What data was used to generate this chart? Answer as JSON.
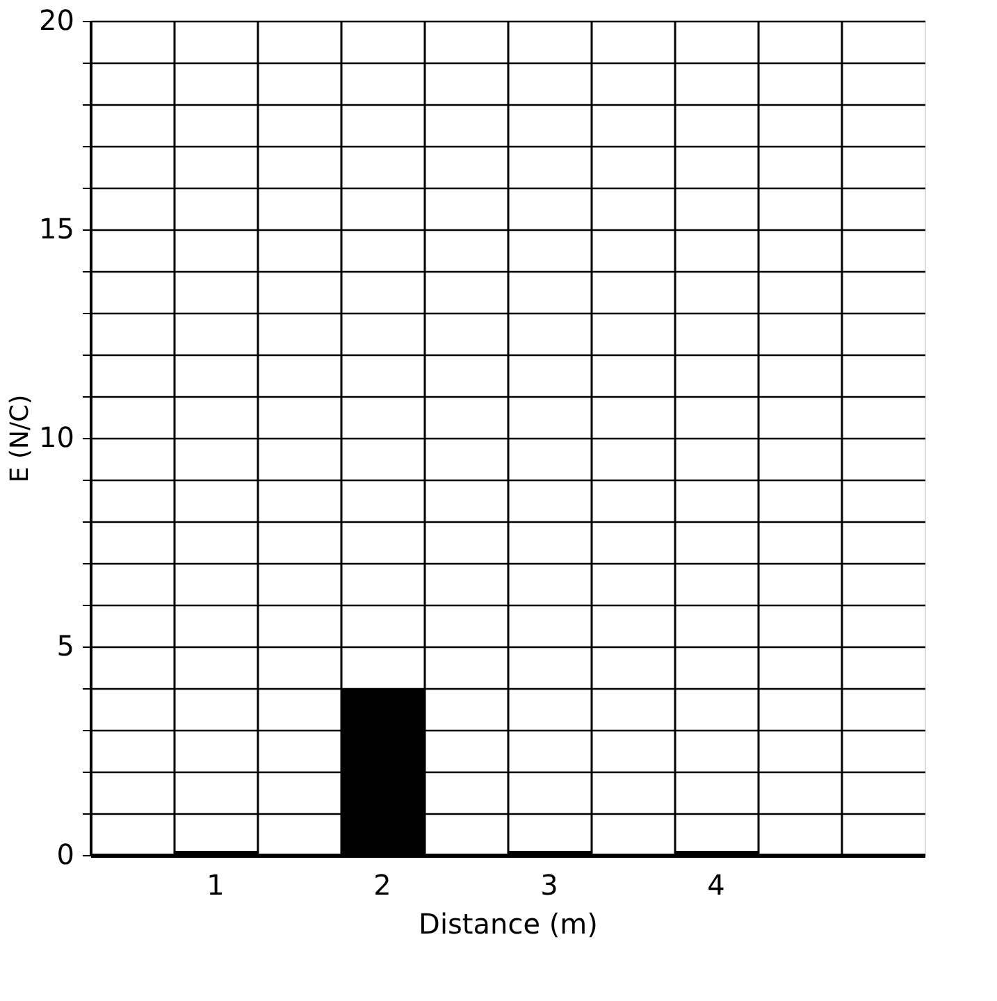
{
  "chart_data": {
    "type": "bar",
    "xlabel": "Distance (m)",
    "ylabel": "E (N/C)",
    "categories": [
      null,
      "1",
      null,
      "2",
      null,
      "3",
      null,
      "4",
      null,
      null
    ],
    "values": [
      null,
      0.1,
      null,
      4,
      null,
      0.1,
      null,
      0.1,
      null,
      null
    ],
    "color": "#000000",
    "ylim": [
      0,
      20
    ],
    "yticks": [
      0,
      {
        "value": 1,
        "label": null
      },
      {
        "value": 2,
        "label": null
      },
      {
        "value": 3,
        "label": null
      },
      {
        "value": 4,
        "label": null
      },
      5,
      {
        "value": 6,
        "label": null
      },
      {
        "value": 7,
        "label": null
      },
      {
        "value": 8,
        "label": null
      },
      {
        "value": 9,
        "label": null
      },
      10,
      {
        "value": 11,
        "label": null
      },
      {
        "value": 12,
        "label": null
      },
      {
        "value": 13,
        "label": null
      },
      {
        "value": 14,
        "label": null
      },
      15,
      {
        "value": 16,
        "label": null
      },
      {
        "value": 17,
        "label": null
      },
      {
        "value": 18,
        "label": null
      },
      {
        "value": 19,
        "label": null
      },
      20
    ],
    "grid": true
  }
}
